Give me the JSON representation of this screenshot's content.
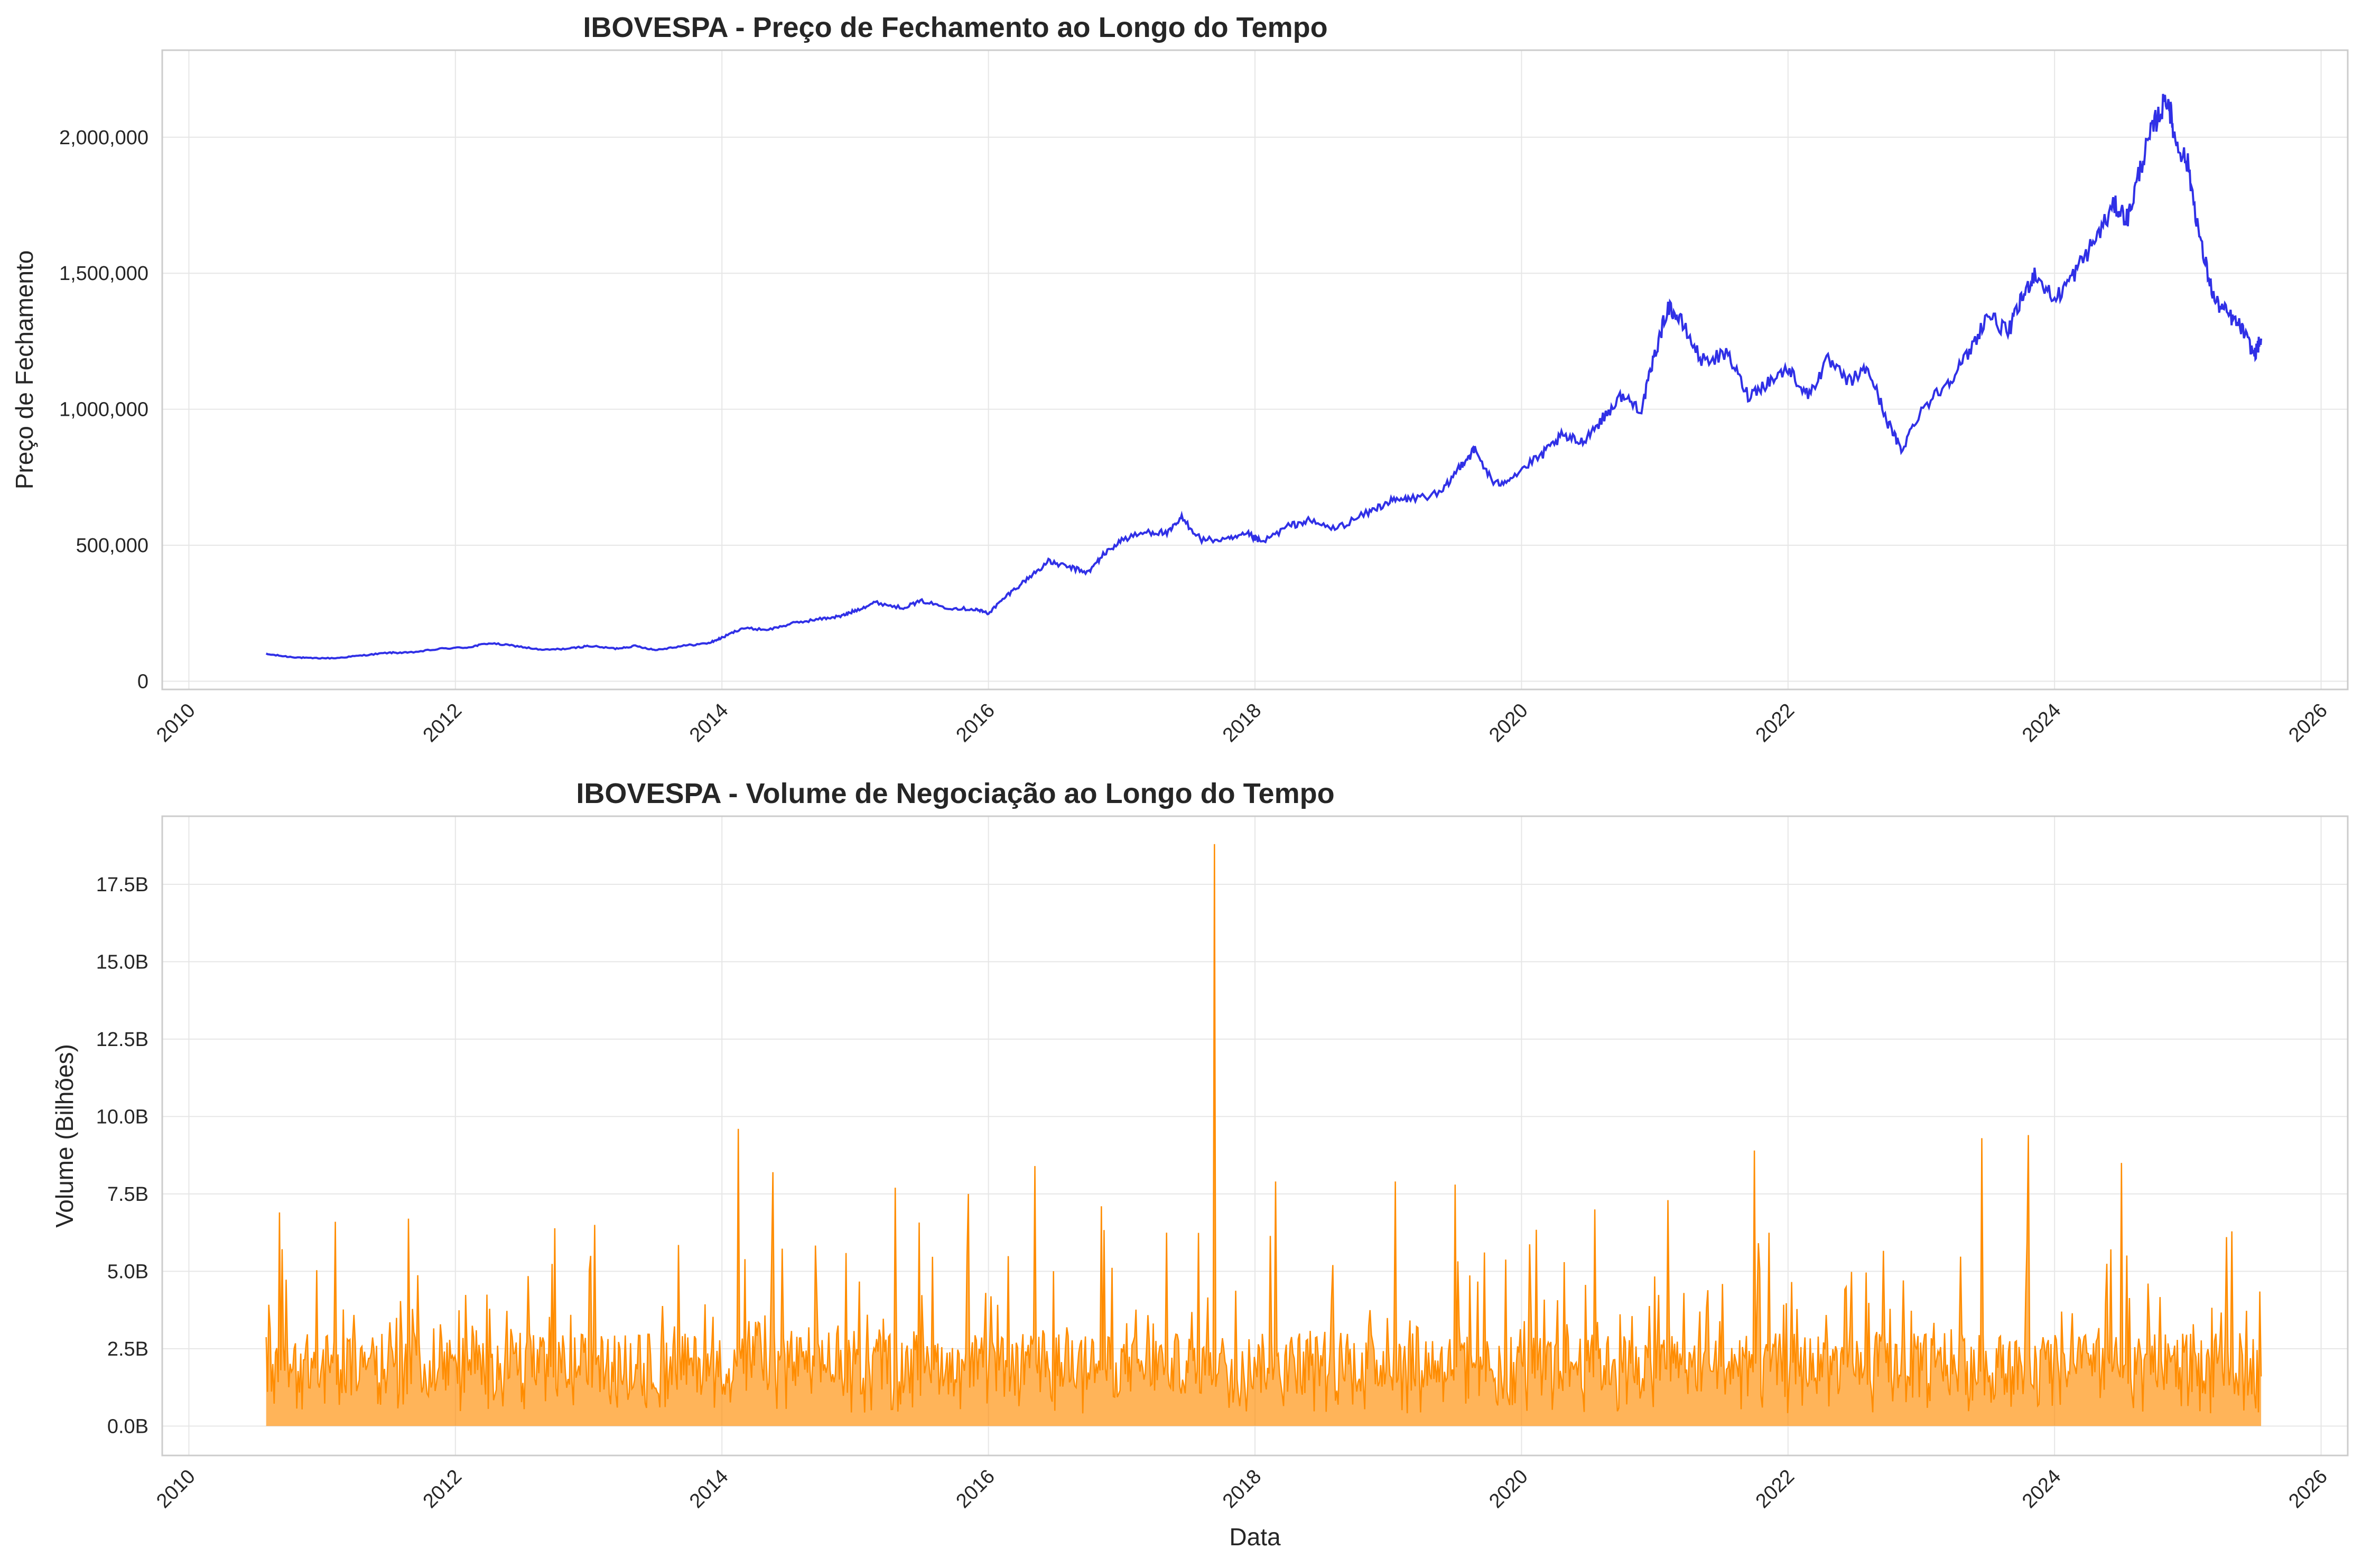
{
  "chart_data": [
    {
      "type": "line",
      "title": "IBOVESPA - Preço de Fechamento ao Longo do Tempo",
      "xlabel": "",
      "ylabel": "Preço de Fechamento",
      "xlim": [
        2009.8,
        2026.2
      ],
      "ylim": [
        -30000,
        2320000
      ],
      "x_ticks": [
        2010,
        2012,
        2014,
        2016,
        2018,
        2020,
        2022,
        2024,
        2026
      ],
      "x_tick_labels": [
        "2010",
        "2012",
        "2014",
        "2016",
        "2018",
        "2020",
        "2022",
        "2024",
        "2026"
      ],
      "y_ticks": [
        0,
        500000,
        1000000,
        1500000,
        2000000
      ],
      "y_tick_labels": [
        "0",
        "500,000",
        "1,000,000",
        "1,500,000",
        "2,000,000"
      ],
      "grid": true,
      "color": "#3030e6",
      "series": [
        {
          "x": [
            2010.58,
            2010.75,
            2010.9,
            2011.1,
            2011.3,
            2011.5,
            2011.65,
            2011.9,
            2012.1,
            2012.25,
            2012.45,
            2012.65,
            2012.85,
            2013.0,
            2013.2,
            2013.35,
            2013.5,
            2013.7,
            2013.9,
            2014.0,
            2014.15,
            2014.35,
            2014.55,
            2014.75,
            2014.9,
            2015.0,
            2015.15,
            2015.35,
            2015.5,
            2015.7,
            2015.9,
            2016.0,
            2016.15,
            2016.3,
            2016.45,
            2016.6,
            2016.75,
            2016.85,
            2017.0,
            2017.2,
            2017.35,
            2017.45,
            2017.6,
            2017.8,
            2017.95,
            2018.05,
            2018.25,
            2018.4,
            2018.6,
            2018.85,
            2019.0,
            2019.15,
            2019.4,
            2019.55,
            2019.65,
            2019.8,
            2019.95,
            2020.15,
            2020.3,
            2020.45,
            2020.6,
            2020.75,
            2020.9,
            2021.0,
            2021.1,
            2021.2,
            2021.35,
            2021.55,
            2021.7,
            2021.85,
            2022.0,
            2022.15,
            2022.3,
            2022.45,
            2022.6,
            2022.75,
            2022.85,
            2023.0,
            2023.2,
            2023.35,
            2023.5,
            2023.65,
            2023.75,
            2023.85,
            2024.0,
            2024.15,
            2024.3,
            2024.45,
            2024.55,
            2024.65,
            2024.75,
            2024.85,
            2024.9,
            2025.0,
            2025.1,
            2025.2,
            2025.3,
            2025.4,
            2025.5,
            2025.55
          ],
          "y": [
            100000,
            90000,
            85000,
            85000,
            95000,
            105000,
            105000,
            120000,
            125000,
            140000,
            130000,
            115000,
            120000,
            130000,
            120000,
            130000,
            115000,
            130000,
            140000,
            160000,
            195000,
            190000,
            215000,
            230000,
            240000,
            260000,
            290000,
            270000,
            295000,
            270000,
            265000,
            250000,
            320000,
            380000,
            440000,
            420000,
            400000,
            460000,
            520000,
            550000,
            545000,
            600000,
            520000,
            520000,
            540000,
            510000,
            570000,
            590000,
            560000,
            620000,
            660000,
            670000,
            690000,
            800000,
            850000,
            720000,
            760000,
            830000,
            900000,
            880000,
            960000,
            1050000,
            1000000,
            1200000,
            1380000,
            1320000,
            1180000,
            1200000,
            1050000,
            1100000,
            1150000,
            1050000,
            1180000,
            1100000,
            1150000,
            950000,
            850000,
            1000000,
            1100000,
            1200000,
            1350000,
            1280000,
            1400000,
            1500000,
            1400000,
            1500000,
            1620000,
            1750000,
            1700000,
            1900000,
            2050000,
            2150000,
            2000000,
            1900000,
            1600000,
            1400000,
            1350000,
            1300000,
            1200000,
            1260000
          ]
        }
      ]
    },
    {
      "type": "area",
      "title": "IBOVESPA - Volume de Negociação ao Longo do Tempo",
      "xlabel": "Data",
      "ylabel": "Volume (Bilhões)",
      "xlim": [
        2009.8,
        2026.2
      ],
      "ylim": [
        -0.95,
        19.7
      ],
      "x_ticks": [
        2010,
        2012,
        2014,
        2016,
        2018,
        2020,
        2022,
        2024,
        2026
      ],
      "x_tick_labels": [
        "2010",
        "2012",
        "2014",
        "2016",
        "2018",
        "2020",
        "2022",
        "2024",
        "2026"
      ],
      "y_ticks": [
        0,
        2.5,
        5,
        7.5,
        10,
        12.5,
        15,
        17.5
      ],
      "y_tick_labels": [
        "0.0B",
        "2.5B",
        "5.0B",
        "7.5B",
        "10.0B",
        "12.5B",
        "15.0B",
        "17.5B"
      ],
      "grid": true,
      "color": "#ff8c00",
      "x_start": 2010.58,
      "x_end": 2025.55,
      "typical_range": [
        1.0,
        3.0
      ],
      "spikes": [
        {
          "x": 2010.68,
          "y": 6.9
        },
        {
          "x": 2011.1,
          "y": 6.6
        },
        {
          "x": 2011.65,
          "y": 6.7
        },
        {
          "x": 2013.05,
          "y": 6.5
        },
        {
          "x": 2014.12,
          "y": 9.6
        },
        {
          "x": 2014.38,
          "y": 8.2
        },
        {
          "x": 2015.3,
          "y": 7.7
        },
        {
          "x": 2015.85,
          "y": 7.5
        },
        {
          "x": 2016.35,
          "y": 8.4
        },
        {
          "x": 2016.85,
          "y": 7.1
        },
        {
          "x": 2017.7,
          "y": 18.8
        },
        {
          "x": 2018.15,
          "y": 7.9
        },
        {
          "x": 2019.05,
          "y": 7.9
        },
        {
          "x": 2019.5,
          "y": 7.8
        },
        {
          "x": 2020.55,
          "y": 7.0
        },
        {
          "x": 2021.1,
          "y": 7.3
        },
        {
          "x": 2021.75,
          "y": 8.9
        },
        {
          "x": 2023.45,
          "y": 9.3
        },
        {
          "x": 2023.8,
          "y": 9.4
        },
        {
          "x": 2024.5,
          "y": 8.5
        }
      ]
    }
  ]
}
